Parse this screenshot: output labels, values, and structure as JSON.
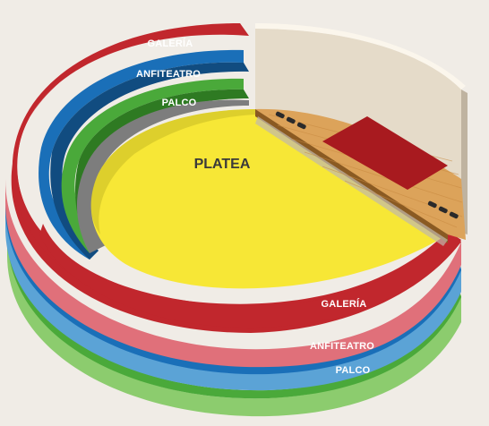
{
  "sections": {
    "galeria": {
      "label": "GALERÍA",
      "color": "#c1272d",
      "side": "#e0707a"
    },
    "anfiteatro": {
      "label": "ANFITEATRO",
      "color": "#1a6fb8",
      "side": "#5ba3d6"
    },
    "palco": {
      "label": "PALCO",
      "color": "#4aa93a",
      "side": "#8ccc6e"
    },
    "platea": {
      "label": "PLATEA",
      "color": "#f7e736"
    }
  },
  "stage_colors": {
    "wood": "#dca35a",
    "carpet": "#a81a1f",
    "backdrop": "#e5dbc9"
  }
}
